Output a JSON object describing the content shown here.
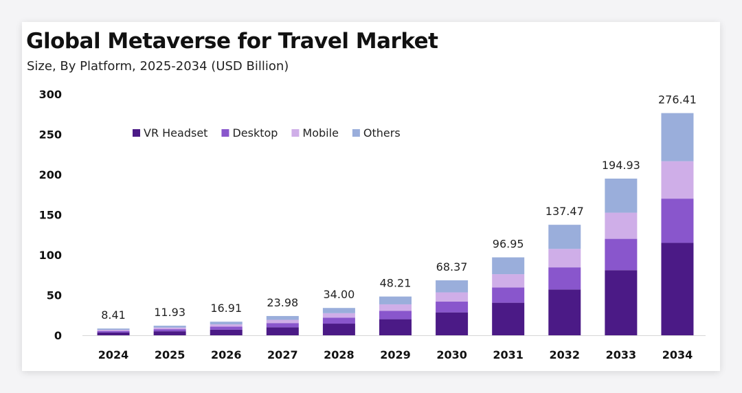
{
  "title": "Global Metaverse for Travel Market",
  "subtitle": "Size, By Platform, 2025-2034 (USD Billion)",
  "colors": {
    "vr_headset": "#4b1a86",
    "desktop": "#8956cc",
    "mobile": "#cfaee8",
    "others": "#9aaedb"
  },
  "chart_data": {
    "type": "bar",
    "stacked": true,
    "title": "Global Metaverse for Travel Market",
    "subtitle": "Size, By Platform, 2025-2034 (USD Billion)",
    "xlabel": "",
    "ylabel": "",
    "ylim": [
      0,
      300
    ],
    "yticks": [
      "0",
      "50",
      "100",
      "150",
      "200",
      "250",
      "300"
    ],
    "categories": [
      "2024",
      "2025",
      "2026",
      "2027",
      "2028",
      "2029",
      "2030",
      "2031",
      "2032",
      "2033",
      "2034"
    ],
    "totals": [
      "8.41",
      "11.93",
      "16.91",
      "23.98",
      "34.00",
      "48.21",
      "68.37",
      "96.95",
      "137.47",
      "194.93",
      "276.41"
    ],
    "legend_position": "top-left",
    "series": [
      {
        "name": "VR Headset",
        "color": "#4b1a86",
        "values": [
          3.5,
          5.0,
          7.0,
          10.0,
          14.5,
          20.0,
          28.5,
          40.5,
          57.0,
          81.0,
          115.0
        ]
      },
      {
        "name": "Desktop",
        "color": "#8956cc",
        "values": [
          1.9,
          2.6,
          3.7,
          5.2,
          7.5,
          10.5,
          13.5,
          19.0,
          27.5,
          39.0,
          55.0
        ]
      },
      {
        "name": "Mobile",
        "color": "#cfaee8",
        "values": [
          1.4,
          2.0,
          2.9,
          4.0,
          5.5,
          8.0,
          11.4,
          16.5,
          23.0,
          32.5,
          46.5
        ]
      },
      {
        "name": "Others",
        "color": "#9aaedb",
        "values": [
          1.61,
          2.33,
          3.31,
          4.78,
          6.5,
          9.71,
          14.97,
          20.95,
          29.97,
          42.43,
          59.91
        ]
      }
    ]
  }
}
